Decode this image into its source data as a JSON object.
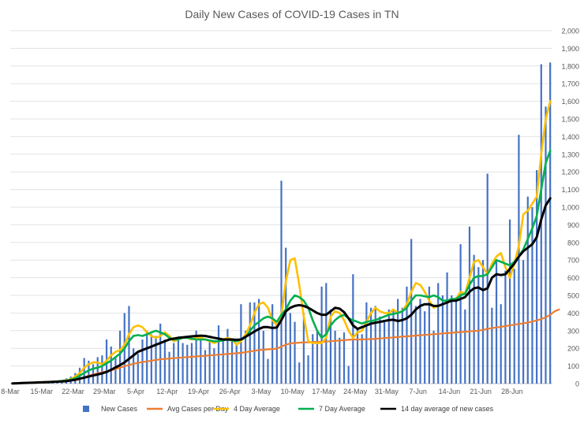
{
  "chart_data": {
    "type": "bar+line",
    "title": "Daily New Cases of COVID-19 Cases in TN",
    "ylim": [
      0,
      2000
    ],
    "y_ticks": [
      0,
      100,
      200,
      300,
      400,
      500,
      600,
      700,
      800,
      900,
      1000,
      1100,
      1200,
      1300,
      1400,
      1500,
      1600,
      1700,
      1800,
      1900,
      2000
    ],
    "y_tick_labels": [
      "0",
      "100",
      "200",
      "300",
      "400",
      "500",
      "600",
      "700",
      "800",
      "900",
      "1,000",
      "1,100",
      "1,200",
      "1,300",
      "1,400",
      "1,500",
      "1,600",
      "1,700",
      "1,800",
      "1,900",
      "2,000"
    ],
    "y_axis_side": "right",
    "grid": true,
    "x_tick_labels": [
      "8-Mar",
      "15-Mar",
      "22-Mar",
      "29-Mar",
      "5-Apr",
      "12-Apr",
      "19-Apr",
      "26-Apr",
      "3-May",
      "10-May",
      "17-May",
      "24-May",
      "31-May",
      "7-Jun",
      "14-Jun",
      "21-Jun",
      "28-Jun"
    ],
    "legend_position": "bottom",
    "series": [
      {
        "name": "New Cases",
        "kind": "bar",
        "color": "#4472c4",
        "values": [
          0,
          1,
          2,
          3,
          4,
          5,
          6,
          8,
          10,
          12,
          15,
          20,
          30,
          40,
          60,
          90,
          145,
          130,
          110,
          150,
          160,
          250,
          210,
          150,
          300,
          400,
          440,
          200,
          170,
          250,
          300,
          280,
          270,
          340,
          250,
          180,
          230,
          260,
          230,
          220,
          230,
          300,
          250,
          190,
          240,
          200,
          330,
          250,
          310,
          240,
          230,
          450,
          300,
          460,
          460,
          480,
          300,
          140,
          450,
          330,
          1150,
          770,
          400,
          350,
          120,
          400,
          160,
          280,
          300,
          550,
          570,
          420,
          300,
          260,
          290,
          100,
          620,
          310,
          280,
          460,
          430,
          440,
          380,
          350,
          420,
          420,
          480,
          430,
          550,
          820,
          440,
          480,
          410,
          550,
          300,
          570,
          500,
          630,
          500,
          490,
          790,
          420,
          890,
          730,
          660,
          700,
          1190,
          430,
          700,
          450,
          640,
          930,
          650,
          1410,
          700,
          1060,
          1000,
          1210,
          1810,
          1570,
          1820
        ]
      },
      {
        "name": "Avg Cases per Day",
        "kind": "line",
        "color": "#ed7d31",
        "values": [
          2,
          3,
          4,
          5,
          6,
          7,
          8,
          9,
          10,
          11,
          12,
          14,
          16,
          18,
          20,
          25,
          35,
          45,
          52,
          58,
          64,
          70,
          76,
          82,
          90,
          98,
          106,
          112,
          118,
          122,
          126,
          130,
          134,
          138,
          140,
          142,
          144,
          146,
          148,
          150,
          152,
          154,
          156,
          158,
          160,
          162,
          164,
          166,
          168,
          170,
          172,
          174,
          178,
          182,
          186,
          190,
          192,
          194,
          196,
          198,
          210,
          220,
          228,
          230,
          232,
          234,
          234,
          236,
          236,
          236,
          238,
          240,
          242,
          244,
          246,
          248,
          250,
          250,
          250,
          252,
          252,
          254,
          256,
          258,
          260,
          262,
          264,
          266,
          268,
          270,
          272,
          274,
          276,
          278,
          280,
          282,
          284,
          286,
          288,
          290,
          292,
          294,
          296,
          298,
          300,
          305,
          310,
          315,
          318,
          322,
          326,
          330,
          334,
          338,
          342,
          346,
          352,
          358,
          366,
          376,
          390,
          410,
          420
        ]
      },
      {
        "name": "4 Day Average",
        "kind": "line",
        "color": "#ffc000",
        "values": [
          1,
          2,
          3,
          4,
          5,
          6,
          7,
          8,
          9,
          10,
          12,
          15,
          20,
          25,
          40,
          60,
          90,
          110,
          120,
          120,
          110,
          130,
          160,
          180,
          190,
          220,
          280,
          320,
          330,
          320,
          290,
          270,
          260,
          270,
          290,
          270,
          240,
          250,
          260,
          260,
          250,
          260,
          260,
          250,
          240,
          230,
          240,
          250,
          260,
          250,
          220,
          240,
          280,
          330,
          400,
          450,
          460,
          430,
          360,
          330,
          390,
          580,
          700,
          710,
          560,
          380,
          240,
          230,
          230,
          230,
          260,
          380,
          410,
          400,
          360,
          300,
          260,
          290,
          300,
          350,
          400,
          430,
          410,
          400,
          400,
          420,
          400,
          410,
          450,
          520,
          570,
          560,
          520,
          470,
          430,
          440,
          450,
          460,
          480,
          480,
          520,
          510,
          600,
          690,
          700,
          660,
          620,
          680,
          720,
          740,
          660,
          600,
          680,
          780,
          960,
          980,
          1020,
          1060,
          1300,
          1500,
          1600
        ]
      },
      {
        "name": "7 Day Average",
        "kind": "line",
        "color": "#00b050",
        "values": [
          1,
          2,
          3,
          4,
          5,
          6,
          7,
          8,
          9,
          10,
          12,
          15,
          18,
          22,
          30,
          45,
          60,
          75,
          85,
          90,
          100,
          115,
          130,
          150,
          170,
          200,
          240,
          270,
          275,
          270,
          280,
          290,
          300,
          290,
          280,
          260,
          250,
          250,
          260,
          260,
          255,
          250,
          250,
          250,
          245,
          240,
          240,
          245,
          250,
          245,
          240,
          250,
          260,
          300,
          330,
          350,
          370,
          380,
          370,
          350,
          390,
          420,
          470,
          500,
          490,
          470,
          430,
          360,
          300,
          260,
          280,
          330,
          360,
          380,
          390,
          370,
          360,
          350,
          340,
          350,
          355,
          360,
          370,
          380,
          390,
          395,
          400,
          410,
          430,
          470,
          500,
          500,
          495,
          490,
          500,
          490,
          470,
          470,
          480,
          480,
          500,
          510,
          560,
          600,
          610,
          610,
          620,
          660,
          700,
          690,
          680,
          670,
          690,
          720,
          760,
          820,
          880,
          950,
          1100,
          1250,
          1320
        ]
      },
      {
        "name": "14 day average of new cases",
        "kind": "line",
        "color": "#000000",
        "values": [
          1,
          2,
          3,
          4,
          5,
          6,
          7,
          8,
          9,
          10,
          11,
          12,
          14,
          18,
          22,
          28,
          34,
          40,
          46,
          52,
          58,
          66,
          78,
          92,
          105,
          120,
          140,
          160,
          180,
          190,
          200,
          210,
          220,
          230,
          240,
          250,
          255,
          260,
          262,
          265,
          268,
          270,
          272,
          270,
          265,
          260,
          255,
          250,
          250,
          250,
          248,
          250,
          265,
          280,
          295,
          310,
          320,
          320,
          315,
          318,
          360,
          410,
          430,
          440,
          445,
          440,
          430,
          415,
          400,
          390,
          390,
          410,
          430,
          425,
          405,
          370,
          330,
          310,
          320,
          330,
          340,
          345,
          350,
          355,
          360,
          362,
          355,
          360,
          370,
          390,
          420,
          440,
          450,
          450,
          440,
          440,
          450,
          460,
          470,
          470,
          480,
          490,
          520,
          540,
          545,
          530,
          540,
          600,
          620,
          615,
          620,
          650,
          680,
          720,
          750,
          770,
          790,
          830,
          930,
          1010,
          1050
        ]
      }
    ]
  }
}
